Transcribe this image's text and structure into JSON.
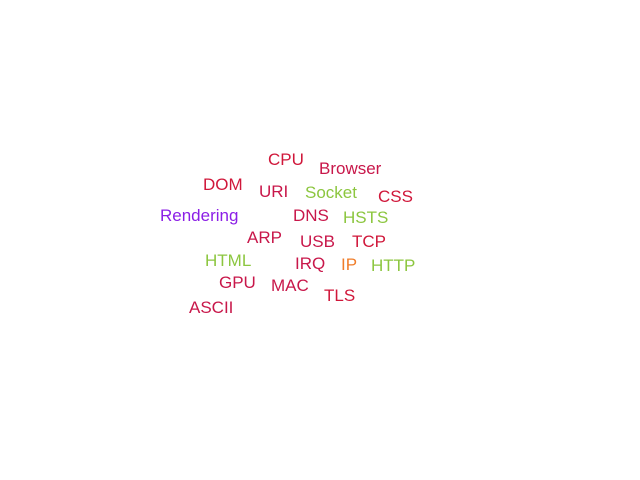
{
  "word_cloud": {
    "words": [
      {
        "key": "cpu",
        "text": "CPU",
        "color": "#d0173a"
      },
      {
        "key": "browser",
        "text": "Browser",
        "color": "#c8174a"
      },
      {
        "key": "dom",
        "text": "DOM",
        "color": "#d0173a"
      },
      {
        "key": "uri",
        "text": "URI",
        "color": "#c8174a"
      },
      {
        "key": "socket",
        "text": "Socket",
        "color": "#8cc63f"
      },
      {
        "key": "css",
        "text": "CSS",
        "color": "#d0173a"
      },
      {
        "key": "rendering",
        "text": "Rendering",
        "color": "#8b1ee6"
      },
      {
        "key": "dns",
        "text": "DNS",
        "color": "#c8174a"
      },
      {
        "key": "hsts",
        "text": "HSTS",
        "color": "#8cc63f"
      },
      {
        "key": "arp",
        "text": "ARP",
        "color": "#c8174a"
      },
      {
        "key": "usb",
        "text": "USB",
        "color": "#c8174a"
      },
      {
        "key": "tcp",
        "text": "TCP",
        "color": "#d0173a"
      },
      {
        "key": "html",
        "text": "HTML",
        "color": "#8cc63f"
      },
      {
        "key": "irq",
        "text": "IRQ",
        "color": "#c8174a"
      },
      {
        "key": "ip",
        "text": "IP",
        "color": "#f07d2a"
      },
      {
        "key": "http",
        "text": "HTTP",
        "color": "#8cc63f"
      },
      {
        "key": "gpu",
        "text": "GPU",
        "color": "#c8174a"
      },
      {
        "key": "mac",
        "text": "MAC",
        "color": "#c8174a"
      },
      {
        "key": "tls",
        "text": "TLS",
        "color": "#d0173a"
      },
      {
        "key": "ascii",
        "text": "ASCII",
        "color": "#c8174a"
      }
    ]
  }
}
